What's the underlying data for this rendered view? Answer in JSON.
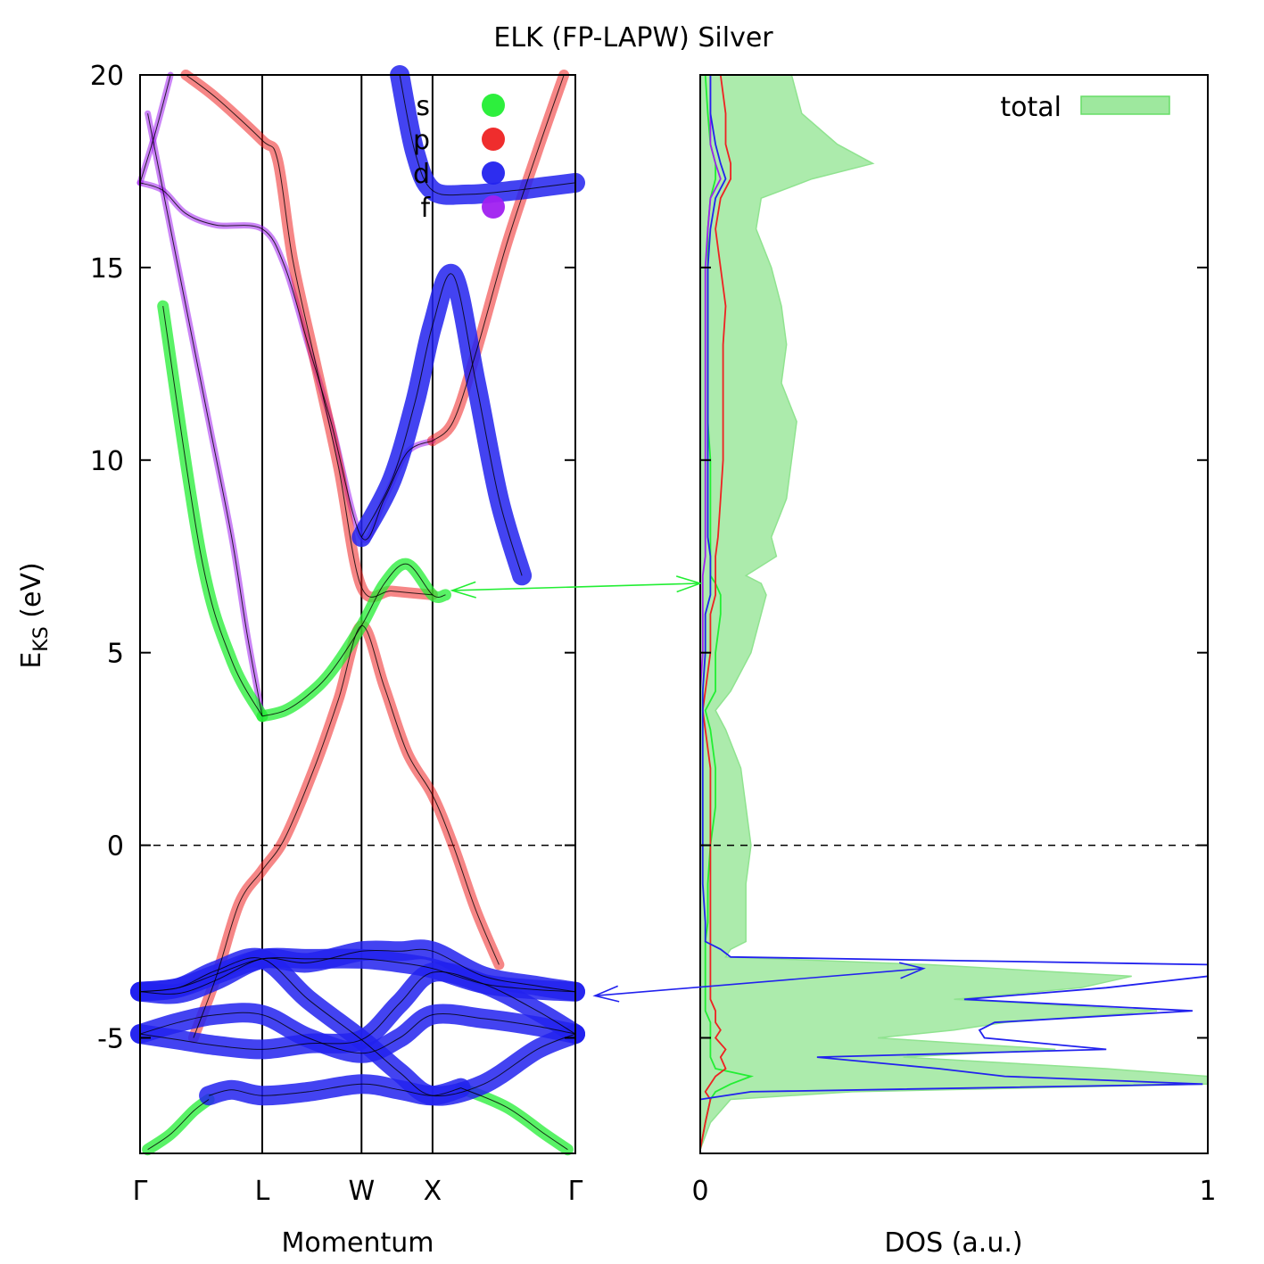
{
  "title": "ELK (FP-LAPW) Silver",
  "colors": {
    "s": "#22ee33",
    "p": "#ee2222",
    "d": "#2222ee",
    "f": "#a020f0",
    "total_fill": "#9ee89e",
    "axis": "#000000"
  },
  "chart_data": [
    {
      "type": "scatter",
      "name": "band-structure",
      "ylabel_main": "E",
      "ylabel_sub": "KS",
      "ylabel_unit": " (eV)",
      "xlabel": "Momentum",
      "ylim": [
        -8,
        20
      ],
      "xlim": [
        0,
        5.7
      ],
      "yticks": [
        -5,
        0,
        5,
        10,
        15,
        20
      ],
      "ytick_labels": [
        "-5",
        "0",
        "5",
        "10",
        "15",
        "20"
      ],
      "kpoints": [
        {
          "label": "Γ",
          "k": 0
        },
        {
          "label": "L",
          "k": 1.6
        },
        {
          "label": "W",
          "k": 2.9
        },
        {
          "label": "X",
          "k": 3.83
        },
        {
          "label": "Γ",
          "k": 5.7
        }
      ],
      "fermi_level": 0,
      "legend": [
        {
          "key": "s",
          "label": "s"
        },
        {
          "key": "p",
          "label": "p"
        },
        {
          "key": "d",
          "label": "d"
        },
        {
          "key": "f",
          "label": "f"
        }
      ],
      "bands": [
        {
          "id": "d1",
          "character": "d",
          "points": [
            [
              0,
              -4.9
            ],
            [
              0.5,
              -4.6
            ],
            [
              1.0,
              -4.4
            ],
            [
              1.6,
              -4.4
            ],
            [
              2.2,
              -5.0
            ],
            [
              2.9,
              -5.4
            ],
            [
              3.4,
              -5.0
            ],
            [
              3.83,
              -4.4
            ],
            [
              4.5,
              -4.5
            ],
            [
              5.2,
              -4.7
            ],
            [
              5.7,
              -4.9
            ]
          ]
        },
        {
          "id": "d2",
          "character": "d",
          "points": [
            [
              0,
              -4.9
            ],
            [
              0.5,
              -5.05
            ],
            [
              1.0,
              -5.2
            ],
            [
              1.6,
              -5.3
            ],
            [
              2.2,
              -5.15
            ],
            [
              2.9,
              -5.05
            ],
            [
              3.4,
              -4.1
            ],
            [
              3.83,
              -3.3
            ],
            [
              4.5,
              -3.6
            ],
            [
              5.2,
              -4.3
            ],
            [
              5.7,
              -4.9
            ]
          ]
        },
        {
          "id": "d3",
          "character": "d",
          "points": [
            [
              0,
              -3.8
            ],
            [
              0.5,
              -3.85
            ],
            [
              1.0,
              -3.5
            ],
            [
              1.6,
              -2.95
            ],
            [
              2.2,
              -3.05
            ],
            [
              2.9,
              -2.75
            ],
            [
              3.4,
              -2.75
            ],
            [
              3.83,
              -2.75
            ],
            [
              4.5,
              -3.4
            ],
            [
              5.2,
              -3.65
            ],
            [
              5.7,
              -3.8
            ]
          ]
        },
        {
          "id": "d4",
          "character": "d",
          "points": [
            [
              0,
              -3.8
            ],
            [
              0.5,
              -3.7
            ],
            [
              1.0,
              -3.25
            ],
            [
              1.6,
              -2.95
            ],
            [
              2.2,
              -4.0
            ],
            [
              2.9,
              -5.05
            ],
            [
              3.4,
              -5.9
            ],
            [
              3.83,
              -6.5
            ],
            [
              4.5,
              -6.2
            ],
            [
              5.2,
              -5.3
            ],
            [
              5.7,
              -4.9
            ]
          ]
        },
        {
          "id": "d5",
          "character": "d",
          "points": [
            [
              0,
              -3.8
            ],
            [
              0.5,
              -3.7
            ],
            [
              1.0,
              -3.35
            ],
            [
              1.6,
              -2.95
            ],
            [
              2.2,
              -2.95
            ],
            [
              2.9,
              -2.95
            ],
            [
              3.4,
              -3.05
            ],
            [
              3.83,
              -3.2
            ],
            [
              4.5,
              -3.6
            ],
            [
              5.2,
              -3.75
            ],
            [
              5.7,
              -3.8
            ]
          ]
        },
        {
          "id": "d6",
          "character": "d",
          "points": [
            [
              0.9,
              -6.5
            ],
            [
              1.2,
              -6.35
            ],
            [
              1.6,
              -6.5
            ],
            [
              2.2,
              -6.4
            ],
            [
              2.9,
              -6.2
            ],
            [
              3.4,
              -6.35
            ],
            [
              3.83,
              -6.5
            ],
            [
              4.2,
              -6.3
            ]
          ]
        },
        {
          "id": "s-gamma",
          "character": "s",
          "points": [
            [
              0.1,
              -7.9
            ],
            [
              0.4,
              -7.5
            ],
            [
              0.7,
              -6.9
            ],
            [
              0.9,
              -6.6
            ]
          ]
        },
        {
          "id": "s-gamma2",
          "character": "s",
          "points": [
            [
              4.2,
              -6.3
            ],
            [
              4.8,
              -6.8
            ],
            [
              5.3,
              -7.5
            ],
            [
              5.6,
              -7.9
            ]
          ]
        },
        {
          "id": "sp-lower",
          "character": "p",
          "points": [
            [
              0.7,
              -5.0
            ],
            [
              1.0,
              -3.4
            ],
            [
              1.3,
              -1.5
            ],
            [
              1.6,
              -0.65
            ],
            [
              1.9,
              0.2
            ],
            [
              2.3,
              2.1
            ],
            [
              2.6,
              3.8
            ],
            [
              2.9,
              5.7
            ],
            [
              3.2,
              4.1
            ],
            [
              3.5,
              2.4
            ],
            [
              3.83,
              1.3
            ],
            [
              4.1,
              0.0
            ],
            [
              4.4,
              -1.7
            ],
            [
              4.7,
              -3.1
            ]
          ]
        },
        {
          "id": "s-upper",
          "character": "s",
          "points": [
            [
              1.6,
              3.35
            ],
            [
              1.9,
              3.5
            ],
            [
              2.2,
              3.9
            ],
            [
              2.5,
              4.5
            ],
            [
              2.9,
              5.7
            ],
            [
              3.2,
              6.8
            ],
            [
              3.5,
              7.3
            ],
            [
              3.83,
              6.5
            ],
            [
              4.0,
              6.5
            ]
          ]
        },
        {
          "id": "s-band6",
          "character": "s",
          "points": [
            [
              0.3,
              14.0
            ],
            [
              0.8,
              7.5
            ],
            [
              1.2,
              4.8
            ],
            [
              1.6,
              3.35
            ]
          ]
        },
        {
          "id": "f-band",
          "character": "f",
          "points": [
            [
              0,
              17.2
            ],
            [
              0.3,
              17.0
            ],
            [
              0.6,
              16.4
            ],
            [
              1.0,
              16.1
            ],
            [
              1.6,
              16.0
            ],
            [
              1.9,
              15.0
            ],
            [
              2.2,
              13.0
            ],
            [
              2.5,
              11.0
            ],
            [
              2.9,
              8.0
            ],
            [
              3.2,
              9.0
            ],
            [
              3.5,
              10.2
            ],
            [
              3.83,
              10.5
            ]
          ]
        },
        {
          "id": "p-upper",
          "character": "p",
          "points": [
            [
              0.6,
              20.0
            ],
            [
              1.0,
              19.4
            ],
            [
              1.6,
              18.3
            ],
            [
              1.8,
              17.8
            ],
            [
              2.0,
              15.2
            ],
            [
              2.3,
              12.5
            ],
            [
              2.6,
              9.8
            ],
            [
              2.9,
              6.7
            ],
            [
              3.3,
              6.6
            ],
            [
              3.83,
              6.5
            ]
          ]
        },
        {
          "id": "p-upper2",
          "character": "p",
          "points": [
            [
              3.83,
              10.5
            ],
            [
              4.1,
              11.0
            ],
            [
              4.4,
              12.8
            ],
            [
              4.8,
              15.6
            ],
            [
              5.2,
              18.0
            ],
            [
              5.55,
              20.0
            ]
          ]
        },
        {
          "id": "d-upper",
          "character": "d",
          "points": [
            [
              2.9,
              8.0
            ],
            [
              3.3,
              9.5
            ],
            [
              3.6,
              11.5
            ],
            [
              3.83,
              13.5
            ],
            [
              4.1,
              14.8
            ],
            [
              4.4,
              12.0
            ],
            [
              4.7,
              9.0
            ],
            [
              5.0,
              7.0
            ]
          ]
        },
        {
          "id": "d-top",
          "character": "d",
          "points": [
            [
              3.4,
              20.0
            ],
            [
              3.6,
              18.0
            ],
            [
              3.83,
              17.0
            ],
            [
              4.3,
              16.9
            ],
            [
              4.9,
              17.0
            ],
            [
              5.3,
              17.1
            ],
            [
              5.7,
              17.2
            ]
          ]
        },
        {
          "id": "gamma-lower",
          "character": "f",
          "points": [
            [
              0,
              17.2
            ],
            [
              0.2,
              18.5
            ],
            [
              0.4,
              20.0
            ]
          ]
        },
        {
          "id": "gamma-mid",
          "character": "f",
          "points": [
            [
              0.1,
              19.0
            ],
            [
              0.3,
              17.0
            ],
            [
              0.6,
              14.0
            ],
            [
              0.9,
              11.0
            ],
            [
              1.2,
              8.0
            ],
            [
              1.4,
              5.5
            ],
            [
              1.6,
              3.35
            ]
          ]
        }
      ]
    },
    {
      "type": "area",
      "name": "density-of-states",
      "xlabel": "DOS (a.u.)",
      "xlim": [
        0,
        1
      ],
      "ylim": [
        -8,
        20
      ],
      "xticks": [
        0,
        1
      ],
      "xtick_labels": [
        "0",
        "1"
      ],
      "legend": [
        {
          "key": "total",
          "label": "total"
        }
      ],
      "energy": [
        -7.9,
        -7.2,
        -6.6,
        -6.4,
        -6.2,
        -6.0,
        -5.8,
        -5.5,
        -5.3,
        -5.0,
        -4.8,
        -4.6,
        -4.3,
        -4.0,
        -3.7,
        -3.4,
        -3.1,
        -2.9,
        -2.7,
        -2.5,
        -2.0,
        -1.0,
        0,
        1,
        2,
        3,
        3.5,
        4,
        5,
        6,
        6.5,
        6.8,
        7,
        7.5,
        8,
        9,
        10,
        11,
        12,
        13,
        14,
        15,
        16,
        16.8,
        17.3,
        17.7,
        18.2,
        19,
        20
      ],
      "total": [
        0.0,
        0.02,
        0.06,
        0.3,
        1.0,
        1.0,
        0.8,
        0.4,
        0.7,
        0.35,
        0.5,
        0.6,
        0.9,
        0.5,
        0.75,
        0.85,
        0.45,
        0.05,
        0.06,
        0.09,
        0.09,
        0.09,
        0.1,
        0.09,
        0.08,
        0.05,
        0.03,
        0.06,
        0.1,
        0.12,
        0.13,
        0.12,
        0.09,
        0.15,
        0.14,
        0.17,
        0.18,
        0.19,
        0.16,
        0.17,
        0.16,
        0.14,
        0.11,
        0.12,
        0.22,
        0.34,
        0.27,
        0.2,
        0.18
      ],
      "s": [
        0.0,
        0.01,
        0.02,
        0.03,
        0.06,
        0.1,
        0.03,
        0.02,
        0.02,
        0.02,
        0.02,
        0.02,
        0.01,
        0.01,
        0.01,
        0.01,
        0.01,
        0.01,
        0.01,
        0.01,
        0.015,
        0.015,
        0.02,
        0.03,
        0.03,
        0.02,
        0.01,
        0.03,
        0.03,
        0.04,
        0.04,
        0.03,
        0.02,
        0.02,
        0.02,
        0.02,
        0.02,
        0.015,
        0.015,
        0.015,
        0.015,
        0.015,
        0.015,
        0.02,
        0.03,
        0.03,
        0.02,
        0.015,
        0.01
      ],
      "p": [
        0.0,
        0.01,
        0.02,
        0.01,
        0.02,
        0.03,
        0.05,
        0.04,
        0.05,
        0.03,
        0.04,
        0.03,
        0.03,
        0.02,
        0.02,
        0.02,
        0.02,
        0.02,
        0.02,
        0.02,
        0.02,
        0.02,
        0.02,
        0.02,
        0.02,
        0.01,
        0.005,
        0.01,
        0.02,
        0.02,
        0.03,
        0.03,
        0.03,
        0.03,
        0.035,
        0.04,
        0.045,
        0.045,
        0.045,
        0.045,
        0.05,
        0.04,
        0.03,
        0.04,
        0.06,
        0.06,
        0.05,
        0.05,
        0.04
      ],
      "d": [
        0.0,
        0.0,
        0.0,
        0.1,
        0.99,
        0.6,
        0.47,
        0.23,
        0.8,
        0.56,
        0.55,
        0.58,
        0.97,
        0.52,
        0.8,
        1.0,
        1.0,
        0.06,
        0.04,
        0.01,
        0.01,
        0.005,
        0.005,
        0.005,
        0.005,
        0.005,
        0.005,
        0.005,
        0.01,
        0.01,
        0.02,
        0.02,
        0.02,
        0.02,
        0.015,
        0.015,
        0.015,
        0.015,
        0.015,
        0.015,
        0.015,
        0.015,
        0.02,
        0.03,
        0.05,
        0.04,
        0.03,
        0.02,
        0.02
      ],
      "f": [
        0.0,
        0.0,
        0.0,
        0.0,
        0.0,
        0.0,
        0.0,
        0.0,
        0.0,
        0.0,
        0.0,
        0.0,
        0.0,
        0.0,
        0.0,
        0.0,
        0.0,
        0.0,
        0.0,
        0.0,
        0.0,
        0.0,
        0.0,
        0.0,
        0.0,
        0.0,
        0.0,
        0.0,
        0.005,
        0.005,
        0.005,
        0.005,
        0.005,
        0.01,
        0.01,
        0.01,
        0.01,
        0.01,
        0.01,
        0.01,
        0.01,
        0.01,
        0.015,
        0.02,
        0.04,
        0.03,
        0.02,
        0.02,
        0.02
      ]
    }
  ],
  "annotations": [
    {
      "name": "arrow-s-peak",
      "color_key": "s",
      "from": {
        "panel": "bands",
        "k": 3.83,
        "E": 6.6
      },
      "to": {
        "panel": "dos",
        "dos": 0.0,
        "E": 6.8
      }
    },
    {
      "name": "arrow-d-peak",
      "color_key": "d",
      "from": {
        "panel": "bands",
        "k": 5.7,
        "E": -3.95
      },
      "to": {
        "panel": "dos",
        "dos": 0.44,
        "E": -3.2
      }
    }
  ]
}
